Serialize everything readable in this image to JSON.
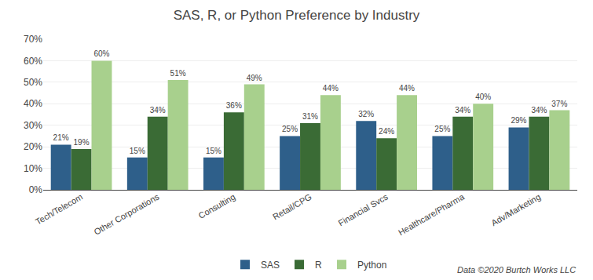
{
  "chart_data": {
    "type": "bar",
    "title": "SAS, R, or Python Preference by Industry",
    "categories": [
      "Tech/Telecom",
      "Other Corporations",
      "Consulting",
      "Retail/CPG",
      "Financial Svcs",
      "Healthcare/Pharma",
      "Adv/Marketing"
    ],
    "series": [
      {
        "name": "SAS",
        "color": "#2e5f8a",
        "values": [
          21,
          15,
          15,
          25,
          32,
          25,
          29
        ],
        "value_labels": [
          "21%",
          "15%",
          "15%",
          "25%",
          "32%",
          "25%",
          "29%"
        ]
      },
      {
        "name": "R",
        "color": "#3a6b35",
        "values": [
          19,
          34,
          36,
          31,
          24,
          34,
          34
        ],
        "value_labels": [
          "19%",
          "34%",
          "36%",
          "31%",
          "24%",
          "34%",
          "34%"
        ]
      },
      {
        "name": "Python",
        "color": "#a8d08d",
        "values": [
          60,
          51,
          49,
          44,
          44,
          40,
          37
        ],
        "value_labels": [
          "60%",
          "51%",
          "49%",
          "44%",
          "44%",
          "40%",
          "37%"
        ]
      }
    ],
    "ylim": [
      0,
      70
    ],
    "yticks": [
      {
        "value": 0,
        "label": "0%"
      },
      {
        "value": 10,
        "label": "10%"
      },
      {
        "value": 20,
        "label": "20%"
      },
      {
        "value": 30,
        "label": "30%"
      },
      {
        "value": 40,
        "label": "40%"
      },
      {
        "value": 50,
        "label": "50%"
      },
      {
        "value": 60,
        "label": "60%"
      },
      {
        "value": 70,
        "label": "70%"
      }
    ],
    "grid": true,
    "data_labels": true,
    "legend": "bottom",
    "annotations": [
      "Data ©2020 Burtch Works LLC"
    ]
  }
}
